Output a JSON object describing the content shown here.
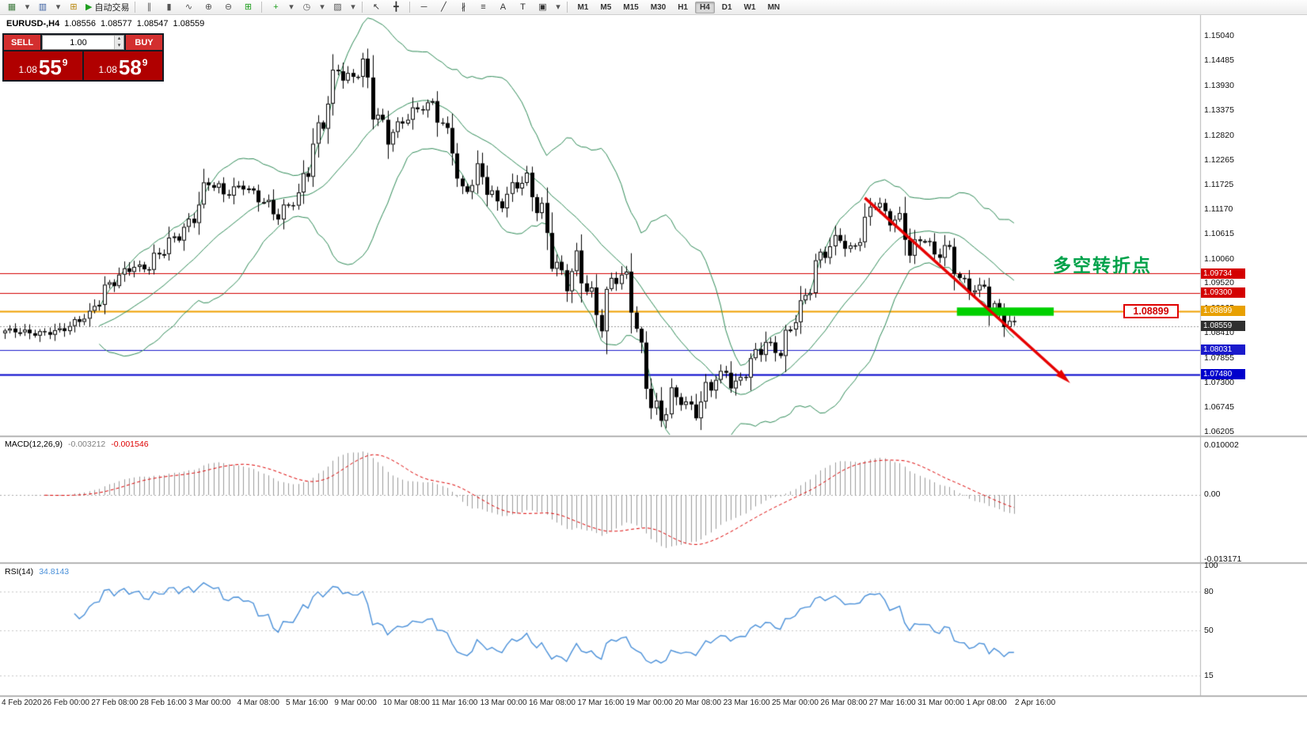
{
  "toolbar": {
    "autotrading_label": "自动交易",
    "items": [
      {
        "name": "new-chart",
        "glyph": "▦",
        "color": "#3f7a3f"
      },
      {
        "name": "new-chart-dropdown",
        "glyph": "▾",
        "color": "#555",
        "narrow": true
      },
      {
        "name": "profiles",
        "glyph": "▥",
        "color": "#3a5fa0"
      },
      {
        "name": "profiles-dropdown",
        "glyph": "▾",
        "color": "#555",
        "narrow": true
      },
      {
        "name": "new-order",
        "glyph": "⊞",
        "color": "#b8860b"
      },
      {
        "name": "autotrading",
        "glyph": "▶",
        "color": "#1f9e1f",
        "label": "自动交易"
      },
      {
        "sep": true
      },
      {
        "name": "bar-chart",
        "glyph": "∥",
        "color": "#555"
      },
      {
        "name": "candlestick-chart",
        "glyph": "▮",
        "color": "#555"
      },
      {
        "name": "line-chart",
        "glyph": "∿",
        "color": "#555"
      },
      {
        "name": "zoom-in",
        "glyph": "⊕",
        "color": "#555"
      },
      {
        "name": "zoom-out",
        "glyph": "⊖",
        "color": "#555"
      },
      {
        "name": "tile-windows",
        "glyph": "⊞",
        "color": "#1f9e1f"
      },
      {
        "sep": true
      },
      {
        "name": "indicators",
        "glyph": "+",
        "color": "#1f9e1f"
      },
      {
        "name": "indicators-dropdown",
        "glyph": "▾",
        "color": "#555",
        "narrow": true
      },
      {
        "name": "periods",
        "glyph": "◷",
        "color": "#555"
      },
      {
        "name": "periods-dropdown",
        "glyph": "▾",
        "color": "#555",
        "narrow": true
      },
      {
        "name": "templates",
        "glyph": "▨",
        "color": "#555"
      },
      {
        "name": "templates-dropdown",
        "glyph": "▾",
        "color": "#555",
        "narrow": true
      },
      {
        "sep": true
      },
      {
        "name": "cursor",
        "glyph": "↖",
        "color": "#333"
      },
      {
        "name": "crosshair",
        "glyph": "╋",
        "color": "#333"
      },
      {
        "sep": true
      },
      {
        "name": "horizontal-line",
        "glyph": "─",
        "color": "#333"
      },
      {
        "name": "trendline",
        "glyph": "╱",
        "color": "#333"
      },
      {
        "name": "equidistant-channel",
        "glyph": "∦",
        "color": "#333"
      },
      {
        "name": "fibonacci",
        "glyph": "≡",
        "color": "#333"
      },
      {
        "name": "text",
        "glyph": "A",
        "color": "#333"
      },
      {
        "name": "text-label",
        "glyph": "T",
        "color": "#333"
      },
      {
        "name": "arrows",
        "glyph": "▣",
        "color": "#333"
      },
      {
        "name": "arrows-dropdown",
        "glyph": "▾",
        "color": "#555",
        "narrow": true
      },
      {
        "sep": true
      }
    ],
    "timeframes": [
      {
        "label": "M1"
      },
      {
        "label": "M5"
      },
      {
        "label": "M15"
      },
      {
        "label": "M30"
      },
      {
        "label": "H1"
      },
      {
        "label": "H4",
        "active": true
      },
      {
        "label": "D1"
      },
      {
        "label": "W1"
      },
      {
        "label": "MN"
      }
    ]
  },
  "quote": {
    "symbol": "EURUSD-,H4",
    "open": "1.08556",
    "high": "1.08577",
    "low": "1.08547",
    "close": "1.08559"
  },
  "trade_widget": {
    "sell_label": "SELL",
    "buy_label": "BUY",
    "volume": "1.00",
    "sell_price_prefix": "1.08",
    "sell_price_big": "55",
    "sell_price_sup": "9",
    "buy_price_prefix": "1.08",
    "buy_price_big": "58",
    "buy_price_sup": "9"
  },
  "chart_data": {
    "type": "candlestick",
    "symbol": "EURUSD",
    "timeframe": "H4",
    "bars": 204,
    "price_anchors": [
      [
        0,
        1.0846
      ],
      [
        6,
        1.0838
      ],
      [
        12,
        1.0852
      ],
      [
        17,
        1.0878
      ],
      [
        21,
        1.0952
      ],
      [
        25,
        1.0992
      ],
      [
        29,
        1.0982
      ],
      [
        33,
        1.104
      ],
      [
        37,
        1.1092
      ],
      [
        41,
        1.1178
      ],
      [
        44,
        1.1145
      ],
      [
        48,
        1.1173
      ],
      [
        52,
        1.1138
      ],
      [
        55,
        1.1098
      ],
      [
        59,
        1.1142
      ],
      [
        62,
        1.1266
      ],
      [
        64,
        1.1336
      ],
      [
        67,
        1.1438
      ],
      [
        69,
        1.1388
      ],
      [
        72,
        1.1436
      ],
      [
        74,
        1.135
      ],
      [
        77,
        1.1288
      ],
      [
        82,
        1.133
      ],
      [
        86,
        1.1352
      ],
      [
        90,
        1.1268
      ],
      [
        92,
        1.1148
      ],
      [
        95,
        1.1198
      ],
      [
        99,
        1.1118
      ],
      [
        102,
        1.1168
      ],
      [
        105,
        1.1192
      ],
      [
        108,
        1.1098
      ],
      [
        110,
        1.0998
      ],
      [
        113,
        1.0948
      ],
      [
        115,
        1.1008
      ],
      [
        118,
        1.0928
      ],
      [
        120,
        1.0868
      ],
      [
        122,
        1.0948
      ],
      [
        125,
        1.0968
      ],
      [
        127,
        1.0848
      ],
      [
        130,
        1.07
      ],
      [
        132,
        1.0658
      ],
      [
        134,
        1.07
      ],
      [
        137,
        1.0678
      ],
      [
        139,
        1.0658
      ],
      [
        142,
        1.0738
      ],
      [
        145,
        1.0758
      ],
      [
        147,
        1.0718
      ],
      [
        150,
        1.0768
      ],
      [
        153,
        1.0818
      ],
      [
        156,
        1.0798
      ],
      [
        158,
        1.0868
      ],
      [
        161,
        1.0918
      ],
      [
        163,
        1.0978
      ],
      [
        165,
        1.1018
      ],
      [
        168,
        1.1058
      ],
      [
        170,
        1.1028
      ],
      [
        173,
        1.1088
      ],
      [
        175,
        1.1138
      ],
      [
        177,
        1.1078
      ],
      [
        180,
        1.1098
      ],
      [
        182,
        1.1038
      ],
      [
        185,
        1.1058
      ],
      [
        187,
        1.1008
      ],
      [
        189,
        1.1028
      ],
      [
        192,
        1.0958
      ],
      [
        194,
        1.0938
      ],
      [
        197,
        1.0948
      ],
      [
        199,
        1.0898
      ],
      [
        201,
        1.0868
      ],
      [
        203,
        1.0856
      ]
    ],
    "bollinger": {
      "period": 20,
      "deviation": 2,
      "color": "#2e8b57"
    },
    "levels": [
      {
        "price": 1.09734,
        "label": "1.09734",
        "color": "#d40000",
        "width": 1,
        "badge": "#d40000"
      },
      {
        "price": 1.093,
        "label": "1.09300",
        "color": "#d40000",
        "width": 1,
        "badge": "#d40000"
      },
      {
        "price": 1.08899,
        "label": "1.08899",
        "color": "#f0a000",
        "width": 2,
        "badge": "#e8a000"
      },
      {
        "price": 1.08031,
        "label": "1.08031",
        "color": "#1a1acc",
        "width": 1,
        "badge": "#1a1acc"
      },
      {
        "price": 1.0748,
        "label": "1.07480",
        "color": "#0000cc",
        "width": 2,
        "badge": "#0000cc"
      }
    ],
    "current_price": {
      "value": 1.08559,
      "label": "1.08559"
    },
    "y_axis_ticks": [
      "1.15040",
      "1.14485",
      "1.13930",
      "1.13375",
      "1.12820",
      "1.12265",
      "1.11725",
      "1.11170",
      "1.10615",
      "1.10060",
      "1.09520",
      "1.08965",
      "1.08410",
      "1.07855",
      "1.07300",
      "1.06745",
      "1.06205"
    ],
    "x_axis_labels": [
      "4 Feb 2020",
      "26 Feb 00:00",
      "27 Feb 08:00",
      "28 Feb 16:00",
      "3 Mar 00:00",
      "4 Mar 08:00",
      "5 Mar 16:00",
      "9 Mar 00:00",
      "10 Mar 08:00",
      "11 Mar 16:00",
      "13 Mar 00:00",
      "16 Mar 08:00",
      "17 Mar 16:00",
      "19 Mar 00:00",
      "20 Mar 08:00",
      "23 Mar 16:00",
      "25 Mar 00:00",
      "26 Mar 08:00",
      "27 Mar 16:00",
      "31 Mar 00:00",
      "1 Apr 08:00",
      "2 Apr 16:00"
    ],
    "annotations": {
      "turning_point_text": "多空转折点",
      "price_callout": "1.08899",
      "green_box": {
        "from_bar": 192,
        "to_bar": 211,
        "top_price": 1.08975,
        "bottom_price": 1.0879,
        "color": "#00d000"
      },
      "trend_arrow": {
        "from_bar": 173,
        "from_price": 1.1142,
        "to_bar": 213,
        "to_price": 1.0742,
        "color": "#e60000"
      }
    },
    "indicators": {
      "macd": {
        "label": "MACD(12,26,9)",
        "fast": 12,
        "slow": 26,
        "signal": 9,
        "values": [
          "-0.003212",
          "-0.001546"
        ],
        "axis": [
          "0.010002",
          "0.00",
          "-0.013171"
        ],
        "histogram_color": "#9a9a9a",
        "signal_color": "#dd0000"
      },
      "rsi": {
        "label": "RSI(14)",
        "period": 14,
        "value": "34.8143",
        "axis": [
          "100",
          "80",
          "50",
          "15"
        ],
        "line_color": "#4a90d9"
      }
    }
  }
}
